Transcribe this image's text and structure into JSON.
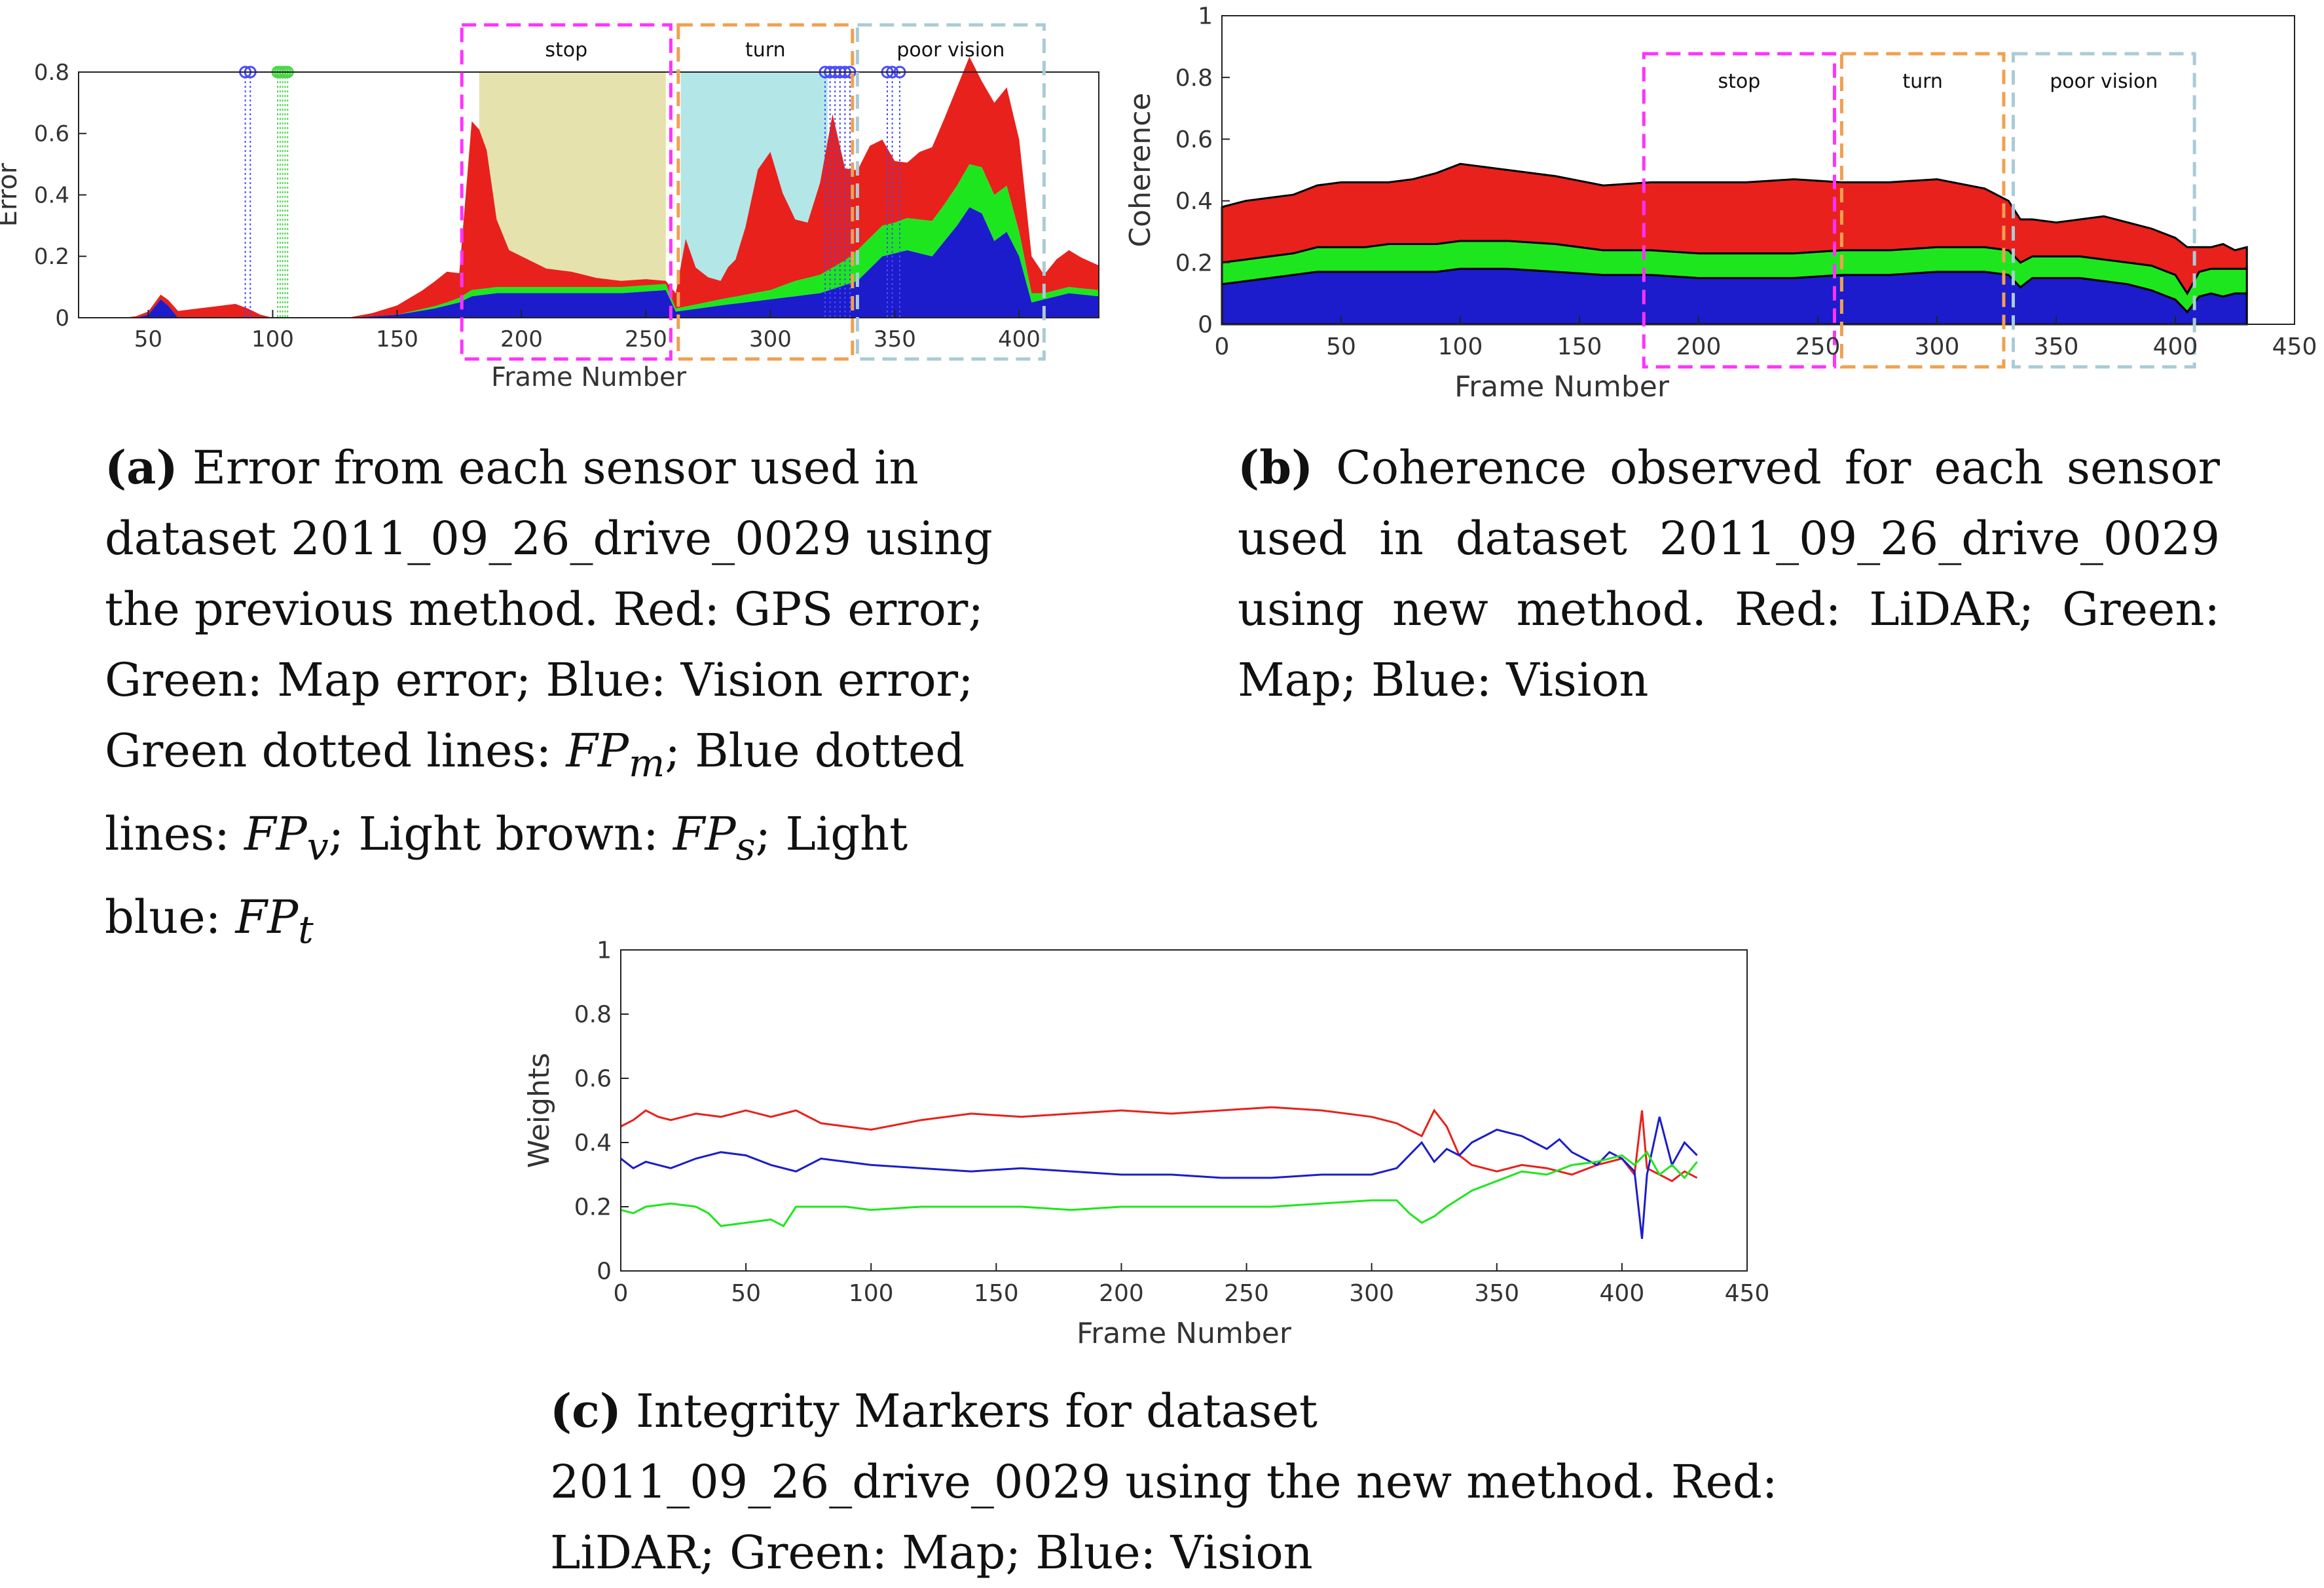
{
  "chart_data": [
    {
      "id": "a",
      "type": "area",
      "stacked": true,
      "ylabel": "Error",
      "xlabel": "Frame Number",
      "xlim": [
        22,
        432
      ],
      "ylim": [
        0,
        0.8
      ],
      "xticks": [
        50,
        100,
        150,
        200,
        250,
        300,
        350,
        400
      ],
      "yticks": [
        0,
        0.2,
        0.4,
        0.6,
        0.8
      ],
      "ytick_labels": [
        "0",
        "0.2",
        "0.4",
        "0.6",
        "0.8"
      ],
      "grid": false,
      "colors": {
        "gps": "#e8211c",
        "map": "#1ee61e",
        "vision": "#1c1ccc",
        "fp_s": "#e6e2ad",
        "fp_t": "#b3e6e6",
        "fp_m_line": "#4ad84a",
        "fp_v_line": "#4a4aff"
      },
      "regions": [
        {
          "label": "stop",
          "x": [
            176,
            260
          ],
          "color": "#ff33ff"
        },
        {
          "label": "turn",
          "x": [
            263,
            333
          ],
          "color": "#f0a050"
        },
        {
          "label": "poor vision",
          "x": [
            335,
            410
          ],
          "color": "#aacbd6"
        }
      ],
      "shaded": [
        {
          "name": "Light brown",
          "x": [
            183,
            258
          ]
        },
        {
          "name": "Light blue",
          "x": [
            264,
            323
          ]
        }
      ],
      "fp_m_x": [
        102,
        103,
        104,
        105,
        106
      ],
      "fp_v_x": [
        89,
        91,
        322,
        324,
        326,
        328,
        330,
        332,
        347,
        349,
        352
      ],
      "series": [
        {
          "name": "GPS error",
          "x": [
            22,
            40,
            45,
            50,
            55,
            60,
            65,
            70,
            75,
            80,
            85,
            90,
            95,
            100,
            110,
            120,
            130,
            140,
            150,
            160,
            170,
            175,
            180,
            183,
            186,
            190,
            195,
            200,
            210,
            220,
            230,
            240,
            250,
            258,
            262,
            266,
            270,
            275,
            280,
            283,
            286,
            290,
            295,
            300,
            305,
            310,
            315,
            320,
            325,
            330,
            335,
            340,
            345,
            350,
            355,
            360,
            365,
            370,
            375,
            380,
            385,
            390,
            395,
            400,
            405,
            410,
            415,
            420,
            425,
            432
          ],
          "values": [
            0.0,
            0.0,
            0.005,
            0.01,
            0.015,
            0.02,
            0.025,
            0.03,
            0.035,
            0.04,
            0.045,
            0.03,
            0.01,
            0.0,
            0.0,
            0.0,
            0.0,
            0.01,
            0.03,
            0.06,
            0.1,
            0.08,
            0.55,
            0.52,
            0.45,
            0.22,
            0.12,
            0.1,
            0.06,
            0.05,
            0.03,
            0.02,
            0.02,
            0.01,
            0.05,
            0.22,
            0.12,
            0.08,
            0.06,
            0.1,
            0.12,
            0.22,
            0.4,
            0.45,
            0.3,
            0.2,
            0.18,
            0.3,
            0.5,
            0.3,
            0.26,
            0.3,
            0.28,
            0.2,
            0.18,
            0.22,
            0.24,
            0.28,
            0.32,
            0.35,
            0.28,
            0.3,
            0.32,
            0.3,
            0.12,
            0.06,
            0.1,
            0.12,
            0.1,
            0.08
          ]
        },
        {
          "name": "Map error",
          "x": [
            22,
            60,
            100,
            150,
            170,
            180,
            200,
            230,
            258,
            262,
            280,
            300,
            310,
            320,
            330,
            335,
            350,
            370,
            385,
            395,
            400,
            405,
            410,
            420,
            432
          ],
          "values": [
            0.0,
            0.0,
            0.0,
            0.0,
            0.01,
            0.02,
            0.02,
            0.02,
            0.02,
            0.01,
            0.02,
            0.03,
            0.05,
            0.06,
            0.08,
            0.1,
            0.1,
            0.12,
            0.15,
            0.15,
            0.08,
            0.03,
            0.02,
            0.02,
            0.02
          ]
        },
        {
          "name": "Vision error",
          "x": [
            22,
            45,
            50,
            55,
            58,
            62,
            80,
            90,
            100,
            130,
            150,
            165,
            175,
            180,
            190,
            200,
            220,
            240,
            258,
            262,
            280,
            300,
            320,
            335,
            345,
            355,
            365,
            375,
            380,
            385,
            390,
            395,
            400,
            405,
            410,
            420,
            432
          ],
          "values": [
            0.0,
            0.0,
            0.01,
            0.06,
            0.04,
            0.0,
            0.0,
            0.0,
            0.0,
            0.0,
            0.01,
            0.03,
            0.05,
            0.07,
            0.08,
            0.08,
            0.08,
            0.08,
            0.09,
            0.02,
            0.04,
            0.06,
            0.08,
            0.12,
            0.2,
            0.22,
            0.2,
            0.3,
            0.36,
            0.34,
            0.25,
            0.28,
            0.2,
            0.05,
            0.06,
            0.08,
            0.07
          ]
        }
      ]
    },
    {
      "id": "b",
      "type": "area",
      "stacked": true,
      "ylabel": "Coherence",
      "xlabel": "Frame Number",
      "xlim": [
        0,
        450
      ],
      "ylim": [
        0,
        1
      ],
      "xticks": [
        0,
        50,
        100,
        150,
        200,
        250,
        300,
        350,
        400,
        450
      ],
      "yticks": [
        0,
        0.2,
        0.4,
        0.6,
        0.8,
        1
      ],
      "ytick_labels": [
        "0",
        "0.2",
        "0.4",
        "0.6",
        "0.8",
        "1"
      ],
      "grid": false,
      "regions": [
        {
          "label": "stop",
          "x": [
            177,
            257
          ],
          "color": "#ff33ff"
        },
        {
          "label": "turn",
          "x": [
            260,
            328
          ],
          "color": "#f0a050"
        },
        {
          "label": "poor vision",
          "x": [
            332,
            408
          ],
          "color": "#aacbd6"
        }
      ],
      "series": [
        {
          "name": "Vision",
          "color": "#1c1ccc",
          "x": [
            0,
            10,
            20,
            30,
            40,
            50,
            60,
            70,
            80,
            90,
            100,
            120,
            140,
            160,
            180,
            200,
            220,
            240,
            260,
            280,
            300,
            320,
            330,
            335,
            340,
            350,
            360,
            370,
            380,
            390,
            400,
            405,
            410,
            415,
            420,
            425,
            430
          ],
          "values": [
            0.13,
            0.14,
            0.15,
            0.16,
            0.17,
            0.17,
            0.17,
            0.17,
            0.17,
            0.17,
            0.18,
            0.18,
            0.17,
            0.16,
            0.16,
            0.15,
            0.15,
            0.15,
            0.16,
            0.16,
            0.17,
            0.17,
            0.16,
            0.12,
            0.15,
            0.15,
            0.15,
            0.14,
            0.13,
            0.11,
            0.08,
            0.04,
            0.09,
            0.1,
            0.09,
            0.1,
            0.1
          ]
        },
        {
          "name": "Map",
          "color": "#1ee61e",
          "x": [
            0,
            10,
            20,
            30,
            40,
            50,
            60,
            70,
            80,
            90,
            100,
            120,
            140,
            160,
            180,
            200,
            220,
            240,
            260,
            280,
            300,
            320,
            330,
            335,
            340,
            350,
            360,
            370,
            380,
            390,
            400,
            405,
            410,
            415,
            420,
            425,
            430
          ],
          "values": [
            0.07,
            0.07,
            0.07,
            0.07,
            0.08,
            0.08,
            0.08,
            0.09,
            0.09,
            0.09,
            0.09,
            0.09,
            0.09,
            0.08,
            0.08,
            0.08,
            0.08,
            0.08,
            0.08,
            0.08,
            0.08,
            0.08,
            0.08,
            0.08,
            0.07,
            0.07,
            0.07,
            0.07,
            0.07,
            0.08,
            0.08,
            0.06,
            0.08,
            0.08,
            0.09,
            0.08,
            0.08
          ]
        },
        {
          "name": "LiDAR",
          "color": "#e8211c",
          "x": [
            0,
            10,
            20,
            30,
            40,
            50,
            60,
            70,
            80,
            90,
            100,
            120,
            140,
            160,
            180,
            200,
            220,
            240,
            260,
            280,
            300,
            320,
            330,
            335,
            340,
            350,
            360,
            370,
            380,
            390,
            400,
            405,
            410,
            415,
            420,
            425,
            430
          ],
          "values": [
            0.18,
            0.19,
            0.19,
            0.19,
            0.2,
            0.21,
            0.21,
            0.2,
            0.21,
            0.23,
            0.25,
            0.23,
            0.22,
            0.21,
            0.22,
            0.23,
            0.23,
            0.24,
            0.22,
            0.22,
            0.22,
            0.19,
            0.16,
            0.14,
            0.12,
            0.11,
            0.12,
            0.14,
            0.13,
            0.12,
            0.12,
            0.15,
            0.08,
            0.07,
            0.08,
            0.06,
            0.07
          ]
        }
      ]
    },
    {
      "id": "c",
      "type": "line",
      "ylabel": "Weights",
      "xlabel": "Frame Number",
      "xlim": [
        0,
        450
      ],
      "ylim": [
        0,
        1
      ],
      "xticks": [
        0,
        50,
        100,
        150,
        200,
        250,
        300,
        350,
        400,
        450
      ],
      "yticks": [
        0,
        0.2,
        0.4,
        0.6,
        0.8,
        1
      ],
      "ytick_labels": [
        "0",
        "0.2",
        "0.4",
        "0.6",
        "0.8",
        "1"
      ],
      "grid": false,
      "series": [
        {
          "name": "LiDAR",
          "color": "#e8211c",
          "x": [
            0,
            5,
            10,
            15,
            20,
            30,
            40,
            50,
            60,
            70,
            80,
            90,
            100,
            120,
            140,
            160,
            180,
            200,
            220,
            240,
            260,
            280,
            300,
            310,
            315,
            320,
            325,
            330,
            335,
            340,
            350,
            360,
            370,
            380,
            390,
            400,
            405,
            408,
            410,
            415,
            420,
            425,
            430
          ],
          "values": [
            0.45,
            0.47,
            0.5,
            0.48,
            0.47,
            0.49,
            0.48,
            0.5,
            0.48,
            0.5,
            0.46,
            0.45,
            0.44,
            0.47,
            0.49,
            0.48,
            0.49,
            0.5,
            0.49,
            0.5,
            0.51,
            0.5,
            0.48,
            0.46,
            0.44,
            0.42,
            0.5,
            0.45,
            0.36,
            0.33,
            0.31,
            0.33,
            0.32,
            0.3,
            0.33,
            0.35,
            0.3,
            0.5,
            0.32,
            0.3,
            0.28,
            0.31,
            0.29
          ]
        },
        {
          "name": "Vision",
          "color": "#1c1ccc",
          "x": [
            0,
            5,
            10,
            15,
            20,
            30,
            40,
            50,
            60,
            70,
            80,
            90,
            100,
            120,
            140,
            160,
            180,
            200,
            220,
            240,
            260,
            280,
            300,
            310,
            315,
            320,
            325,
            330,
            335,
            340,
            350,
            360,
            365,
            370,
            375,
            380,
            390,
            395,
            400,
            405,
            408,
            410,
            415,
            420,
            425,
            430
          ],
          "values": [
            0.35,
            0.32,
            0.34,
            0.33,
            0.32,
            0.35,
            0.37,
            0.36,
            0.33,
            0.31,
            0.35,
            0.34,
            0.33,
            0.32,
            0.31,
            0.32,
            0.31,
            0.3,
            0.3,
            0.29,
            0.29,
            0.3,
            0.3,
            0.32,
            0.36,
            0.4,
            0.34,
            0.38,
            0.36,
            0.4,
            0.44,
            0.42,
            0.4,
            0.38,
            0.41,
            0.37,
            0.33,
            0.37,
            0.35,
            0.31,
            0.1,
            0.3,
            0.48,
            0.33,
            0.4,
            0.36
          ]
        },
        {
          "name": "Map",
          "color": "#1ee61e",
          "x": [
            0,
            5,
            10,
            20,
            30,
            35,
            40,
            50,
            60,
            65,
            70,
            80,
            90,
            100,
            120,
            140,
            160,
            180,
            200,
            220,
            240,
            260,
            280,
            300,
            310,
            315,
            320,
            325,
            330,
            340,
            350,
            360,
            370,
            380,
            390,
            400,
            405,
            410,
            415,
            420,
            425,
            430
          ],
          "values": [
            0.19,
            0.18,
            0.2,
            0.21,
            0.2,
            0.18,
            0.14,
            0.15,
            0.16,
            0.14,
            0.2,
            0.2,
            0.2,
            0.19,
            0.2,
            0.2,
            0.2,
            0.19,
            0.2,
            0.2,
            0.2,
            0.2,
            0.21,
            0.22,
            0.22,
            0.18,
            0.15,
            0.17,
            0.2,
            0.25,
            0.28,
            0.31,
            0.3,
            0.33,
            0.34,
            0.36,
            0.33,
            0.37,
            0.3,
            0.33,
            0.29,
            0.34
          ]
        }
      ]
    }
  ],
  "captions": {
    "a": {
      "label": "(a)",
      "line1": "Error from each sensor used in dataset",
      "line2": "2011_09_26_drive_0029 using the previous",
      "line3": "method. Red: GPS error; Green: Map error;",
      "line4a": "Blue: Vision error; Green dotted lines: ",
      "fp": "FP",
      "sub_m": "m",
      "line4b": ";",
      "line5a": "Blue dotted lines: ",
      "sub_v": "v",
      "line5b": "; Light brown: ",
      "sub_s": "s",
      "line5c": ";",
      "line6a": "Light blue: ",
      "sub_t": "t"
    },
    "b": {
      "label": "(b)",
      "text": "Coherence observed for each sensor used in dataset 2011_09_26_drive_0029 using new method. Red: LiDAR; Green: Map; Blue: Vision"
    },
    "c": {
      "label": "(c)",
      "text": "Integrity Markers for dataset 2011_09_26_drive_0029 using the new method. Red: LiDAR; Green: Map; Blue: Vision"
    }
  }
}
